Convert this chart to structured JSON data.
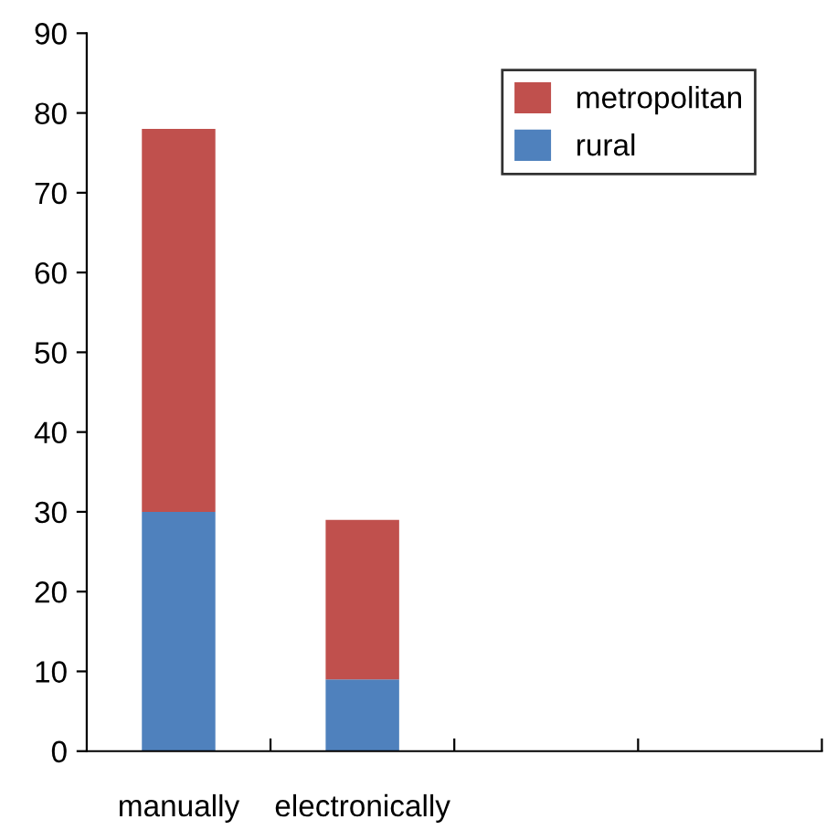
{
  "chart_data": {
    "type": "bar",
    "stacked": true,
    "categories": [
      "manually",
      "electronically",
      null,
      null
    ],
    "series": [
      {
        "name": "rural",
        "color": "#4f81bd",
        "values": [
          30,
          9,
          null,
          null
        ]
      },
      {
        "name": "metropolitan",
        "color": "#c0504d",
        "values": [
          48,
          20,
          null,
          null
        ]
      }
    ],
    "ylim": [
      0,
      90
    ],
    "yticks": [
      0,
      10,
      20,
      30,
      40,
      50,
      60,
      70,
      80,
      90
    ],
    "grid": false,
    "legend": "top right"
  }
}
